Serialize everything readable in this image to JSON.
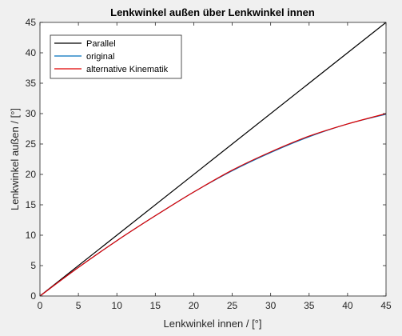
{
  "window": {
    "background": "#f0f0f0"
  },
  "chart_data": {
    "type": "line",
    "title": "Lenkwinkel außen über Lenkwinkel innen",
    "xlabel": "Lenkwinkel innen / [°]",
    "ylabel": "Lenkwinkel außen / [°]",
    "xlim": [
      0,
      45
    ],
    "ylim": [
      0,
      45
    ],
    "xticks": [
      0,
      5,
      10,
      15,
      20,
      25,
      30,
      35,
      40,
      45
    ],
    "yticks": [
      0,
      5,
      10,
      15,
      20,
      25,
      30,
      35,
      40,
      45
    ],
    "grid": false,
    "legend_position": "top-left",
    "series": [
      {
        "name": "Parallel",
        "color": "#000000",
        "x": [
          0,
          45
        ],
        "y": [
          0,
          45
        ]
      },
      {
        "name": "original",
        "color": "#0072bd",
        "x": [
          0,
          5,
          10,
          15,
          20,
          25,
          30,
          35,
          40,
          45
        ],
        "y": [
          0,
          4.7,
          9.1,
          13.2,
          17.1,
          20.6,
          23.6,
          26.2,
          28.3,
          29.9
        ]
      },
      {
        "name": "alternative Kinematik",
        "color": "#e00000",
        "x": [
          0,
          5,
          10,
          15,
          20,
          25,
          30,
          35,
          40,
          45
        ],
        "y": [
          0,
          4.7,
          9.1,
          13.2,
          17.1,
          20.7,
          23.7,
          26.3,
          28.3,
          30.0
        ]
      }
    ]
  }
}
